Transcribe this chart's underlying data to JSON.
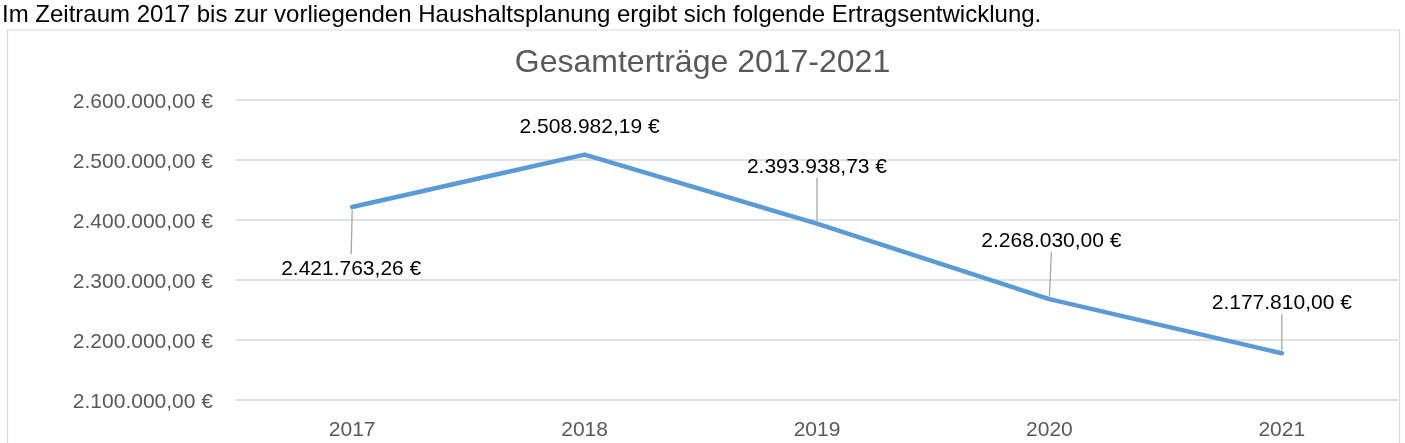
{
  "chart_data": {
    "type": "line",
    "title": "Gesamterträge 2017-2021",
    "annotations": [
      "Im Zeitraum 2017 bis zur vorliegenden Haushaltsplanung ergibt sich folgende Ertragsentwicklung."
    ],
    "categories": [
      "2017",
      "2018",
      "2019",
      "2020",
      "2021"
    ],
    "values": [
      2421763.26,
      2508982.19,
      2393938.73,
      2268030,
      2177810
    ],
    "color": "#5b9bd5",
    "value_labels": [
      "2.421.763,26 €",
      "2.508.982,19 €",
      "2.393.938,73 €",
      "2.268.030,00 €",
      "2.177.810,00 €"
    ],
    "ylim": [
      2100000,
      2600000
    ],
    "yticks": [
      {
        "value": 2100000,
        "label": "2.100.000,00 €"
      },
      {
        "value": 2200000,
        "label": "2.200.000,00 €"
      },
      {
        "value": 2300000,
        "label": "2.300.000,00 €"
      },
      {
        "value": 2400000,
        "label": "2.400.000,00 €"
      },
      {
        "value": 2500000,
        "label": "2.500.000,00 €"
      },
      {
        "value": 2600000,
        "label": "2.600.000,00 €"
      }
    ],
    "grid": "y"
  }
}
